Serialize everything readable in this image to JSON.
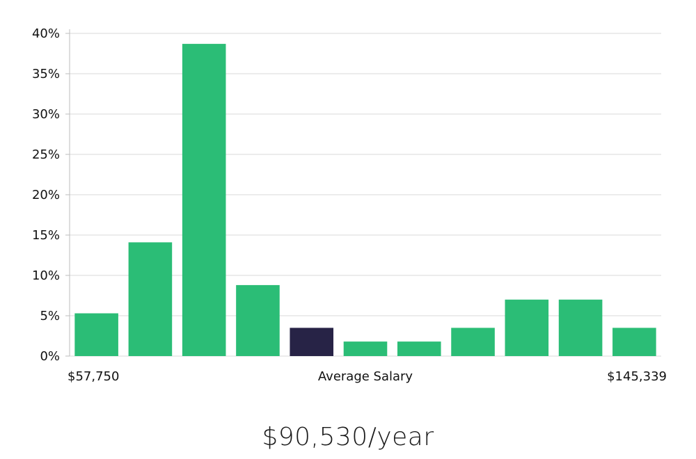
{
  "chart_data": {
    "type": "bar",
    "title": "",
    "xlabel": "Average Salary",
    "ylabel": "",
    "x_range_labels": {
      "min": "$57,750",
      "max": "$145,339"
    },
    "ylim": [
      0,
      40
    ],
    "yticks": [
      0,
      5,
      10,
      15,
      20,
      25,
      30,
      35,
      40
    ],
    "y_tick_format": "{v}%",
    "grid": true,
    "legend": "none",
    "values": [
      5.3,
      14.1,
      38.7,
      8.8,
      3.5,
      1.8,
      1.8,
      3.5,
      7.0,
      7.0,
      3.5
    ],
    "highlight_index": 4,
    "colors": {
      "bar": "#2bbd76",
      "highlight": "#272346",
      "grid": "#d9d9d9",
      "axis": "#bdbdbd"
    }
  },
  "salary_caption": "$90,530/year"
}
